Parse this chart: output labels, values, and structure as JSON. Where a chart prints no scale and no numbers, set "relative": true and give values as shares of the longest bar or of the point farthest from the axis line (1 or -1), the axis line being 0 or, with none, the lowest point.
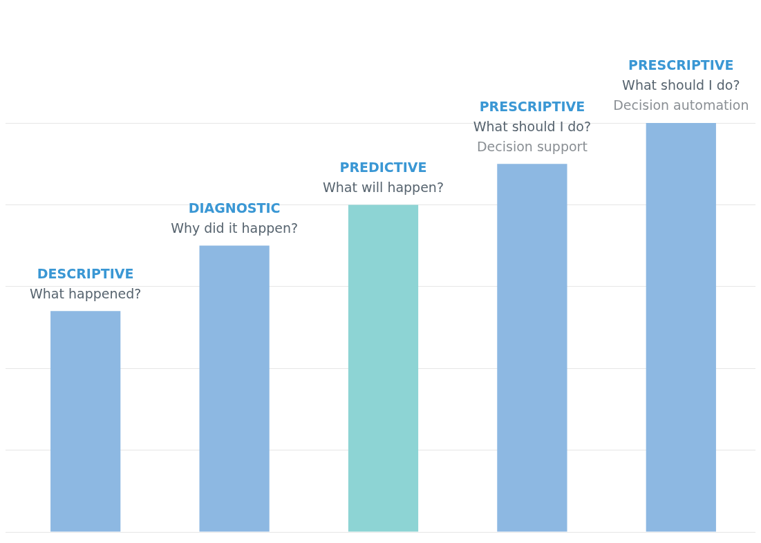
{
  "chart_data": {
    "type": "bar",
    "relative": true,
    "grid": "y",
    "categories": [
      null,
      null,
      null,
      null,
      null
    ],
    "values": [
      0.54,
      0.7,
      0.8,
      0.9,
      1
    ],
    "colors": [
      "#8db8e2",
      "#8db8e2",
      "#8dd4d4",
      "#8db8e2",
      "#8db8e2"
    ],
    "annotations": [
      "DESCRIPTIVE\nWhat happened?",
      "DIAGNOSTIC\nWhy did it happen?",
      "PREDICTIVE\nWhat will happen?",
      "PRESCRIPTIVE\nWhat should I do?\nDecision support",
      "PRESCRIPTIVE\nWhat should I do?\nDecision automation"
    ]
  }
}
